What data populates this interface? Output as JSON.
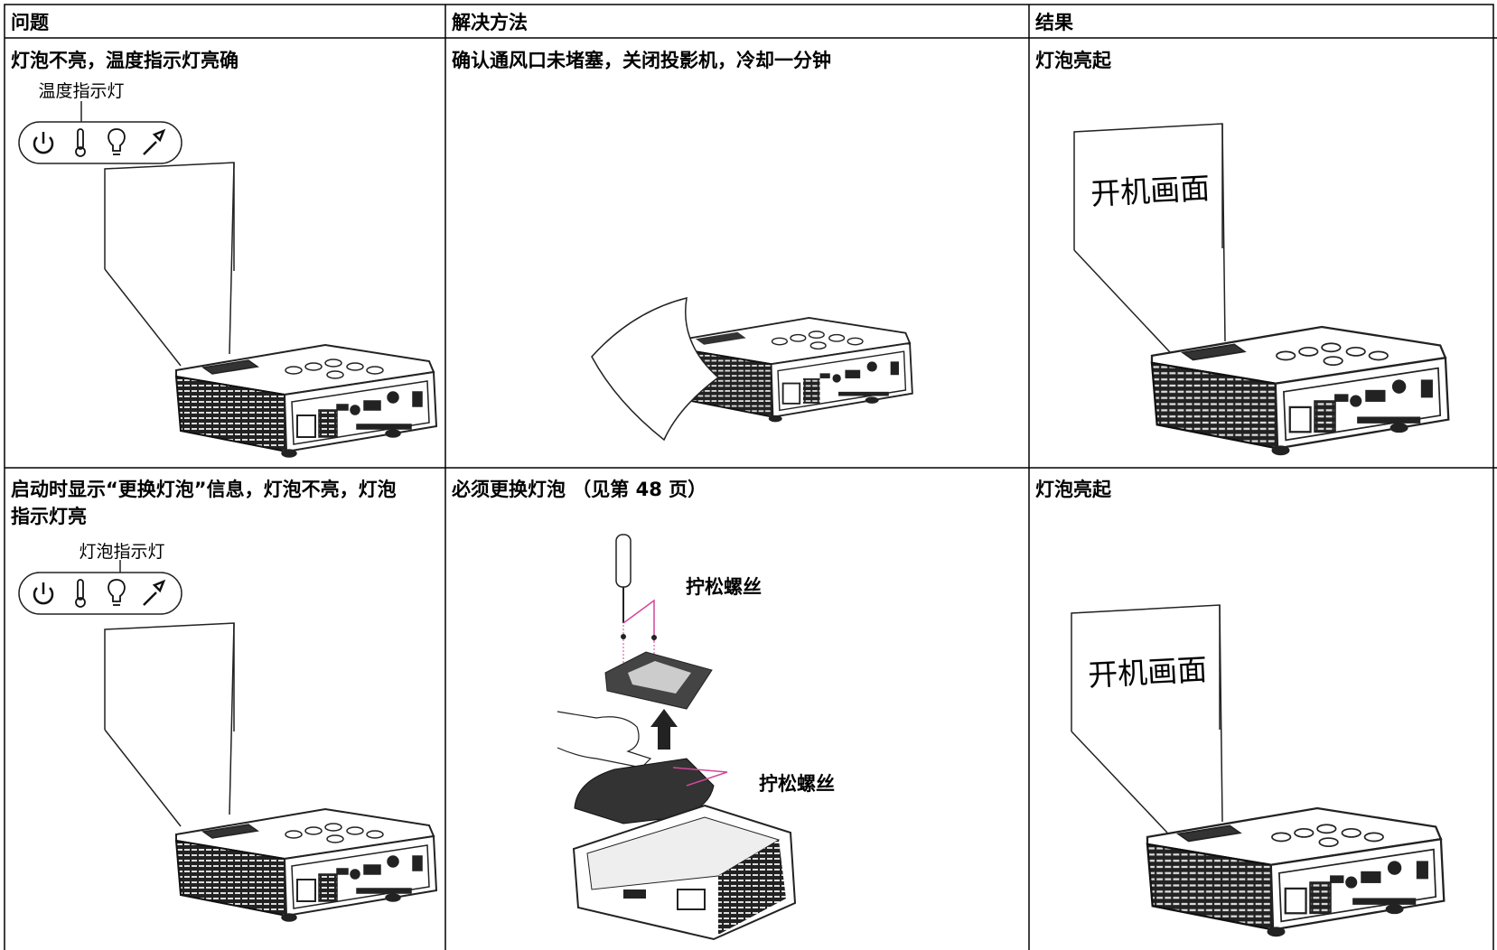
{
  "table": {
    "headers": [
      "问题",
      "解决方法",
      "结果"
    ],
    "rows": [
      {
        "problem": "灯泡不亮，温度指示灯亮确",
        "indicator_label": "温度指示灯",
        "solution": "确认通风口未堵塞，关闭投影机，冷却一分钟",
        "result": "灯泡亮起",
        "screen_text": "开机画面"
      },
      {
        "problem": "启动时显示“更换灯泡”信息，灯泡不亮，灯泡指示灯亮",
        "indicator_label": "灯泡指示灯",
        "solution": "必须更换灯泡 （见第 48 页）",
        "callouts": [
          "拧松螺丝",
          "拧松螺丝"
        ],
        "result": "灯泡亮起",
        "screen_text": "开机画面"
      }
    ]
  }
}
